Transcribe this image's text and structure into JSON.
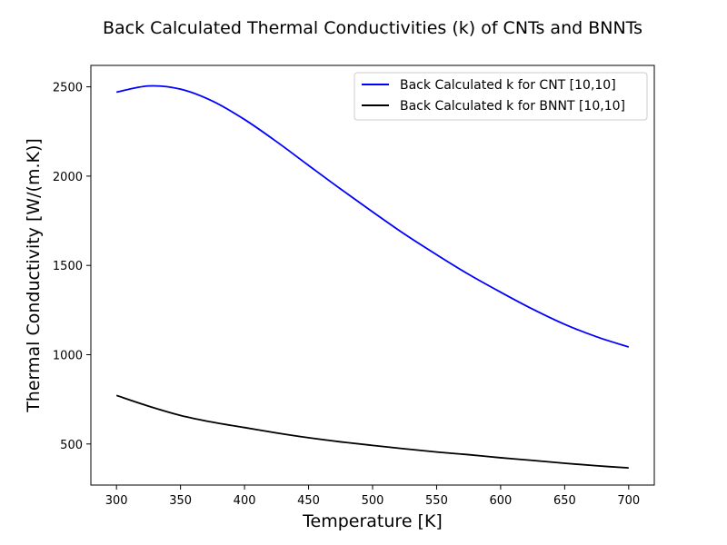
{
  "chart_data": {
    "type": "line",
    "title": "Back Calculated Thermal Conductivities (k) of CNTs and BNNTs",
    "xlabel": "Temperature [K]",
    "ylabel": "Thermal Conductivity [W/(m.K)]",
    "xlim": [
      280,
      720
    ],
    "ylim": [
      270,
      2620
    ],
    "xticks": [
      300,
      350,
      400,
      450,
      500,
      550,
      600,
      650,
      700
    ],
    "yticks": [
      500,
      1000,
      1500,
      2000,
      2500
    ],
    "grid": false,
    "legend_position": "top-right",
    "x": [
      300,
      325,
      350,
      375,
      400,
      425,
      450,
      475,
      500,
      525,
      550,
      575,
      600,
      625,
      650,
      675,
      700
    ],
    "series": [
      {
        "name": "Back Calculated k for CNT [10,10]",
        "color": "#0000ff",
        "values": [
          2470,
          2505,
          2487,
          2420,
          2317,
          2193,
          2060,
          1928,
          1800,
          1675,
          1560,
          1450,
          1350,
          1255,
          1170,
          1100,
          1043
        ]
      },
      {
        "name": "Back Calculated k for BNNT [10,10]",
        "color": "#000000",
        "values": [
          772,
          712,
          660,
          622,
          592,
          562,
          535,
          512,
          492,
          473,
          455,
          440,
          423,
          408,
          392,
          378,
          366
        ]
      }
    ]
  }
}
